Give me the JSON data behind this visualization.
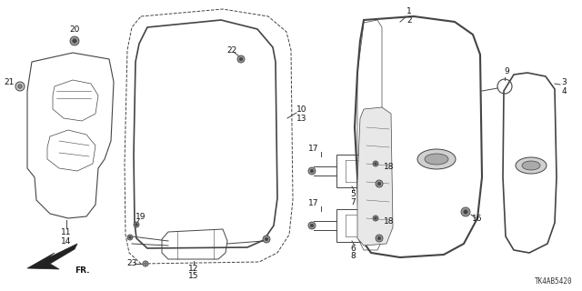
{
  "background_color": "#ffffff",
  "line_color": "#444444",
  "watermark": "TK4AB5420",
  "lw": 0.7,
  "figsize": [
    6.4,
    3.2
  ],
  "dpi": 100
}
